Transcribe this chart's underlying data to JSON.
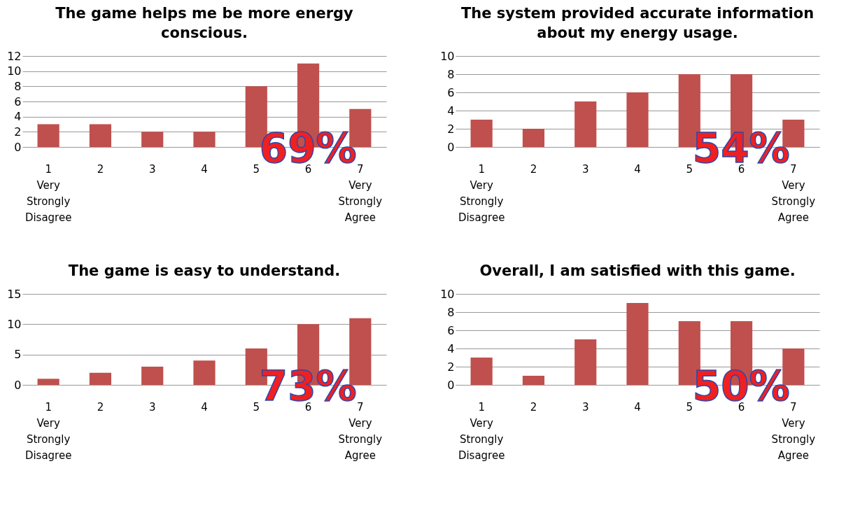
{
  "chart_data": [
    {
      "type": "bar",
      "title": "The game helps me be more energy conscious.",
      "categories": [
        "1 Very Strongly Disagree",
        "2",
        "3",
        "4",
        "5",
        "6",
        "7 Very Strongly Agree"
      ],
      "values": [
        3,
        3,
        2,
        2,
        8,
        11,
        5
      ],
      "color": "#c0504d",
      "ylim": [
        0,
        12
      ],
      "yticks": [
        0,
        2,
        4,
        6,
        8,
        10,
        12
      ],
      "grid": "y",
      "annotations": [
        "69%"
      ]
    },
    {
      "type": "bar",
      "title": "The system provided accurate information about my energy usage.",
      "categories": [
        "1 Very Strongly Disagree",
        "2",
        "3",
        "4",
        "5",
        "6",
        "7 Very Strongly Agree"
      ],
      "values": [
        3,
        2,
        5,
        6,
        8,
        8,
        3
      ],
      "color": "#c0504d",
      "ylim": [
        0,
        10
      ],
      "yticks": [
        0,
        2,
        4,
        6,
        8,
        10
      ],
      "grid": "y",
      "annotations": [
        "54%"
      ]
    },
    {
      "type": "bar",
      "title": "The game is easy to understand.",
      "categories": [
        "1 Very Strongly Disagree",
        "2",
        "3",
        "4",
        "5",
        "6",
        "7 Very Strongly Agree"
      ],
      "values": [
        1,
        2,
        3,
        4,
        6,
        10,
        11
      ],
      "color": "#c0504d",
      "ylim": [
        0,
        15
      ],
      "yticks": [
        0,
        5,
        10,
        15
      ],
      "grid": "y",
      "annotations": [
        "73%"
      ]
    },
    {
      "type": "bar",
      "title": "Overall, I am satisfied with this game.",
      "categories": [
        "1 Very Strongly Disagree",
        "2",
        "3",
        "4",
        "5",
        "6",
        "7 Very Strongly Agree"
      ],
      "values": [
        3,
        1,
        5,
        9,
        7,
        7,
        4
      ],
      "color": "#c0504d",
      "ylim": [
        0,
        10
      ],
      "yticks": [
        0,
        2,
        4,
        6,
        8,
        10
      ],
      "grid": "y",
      "annotations": [
        "50%"
      ]
    }
  ]
}
